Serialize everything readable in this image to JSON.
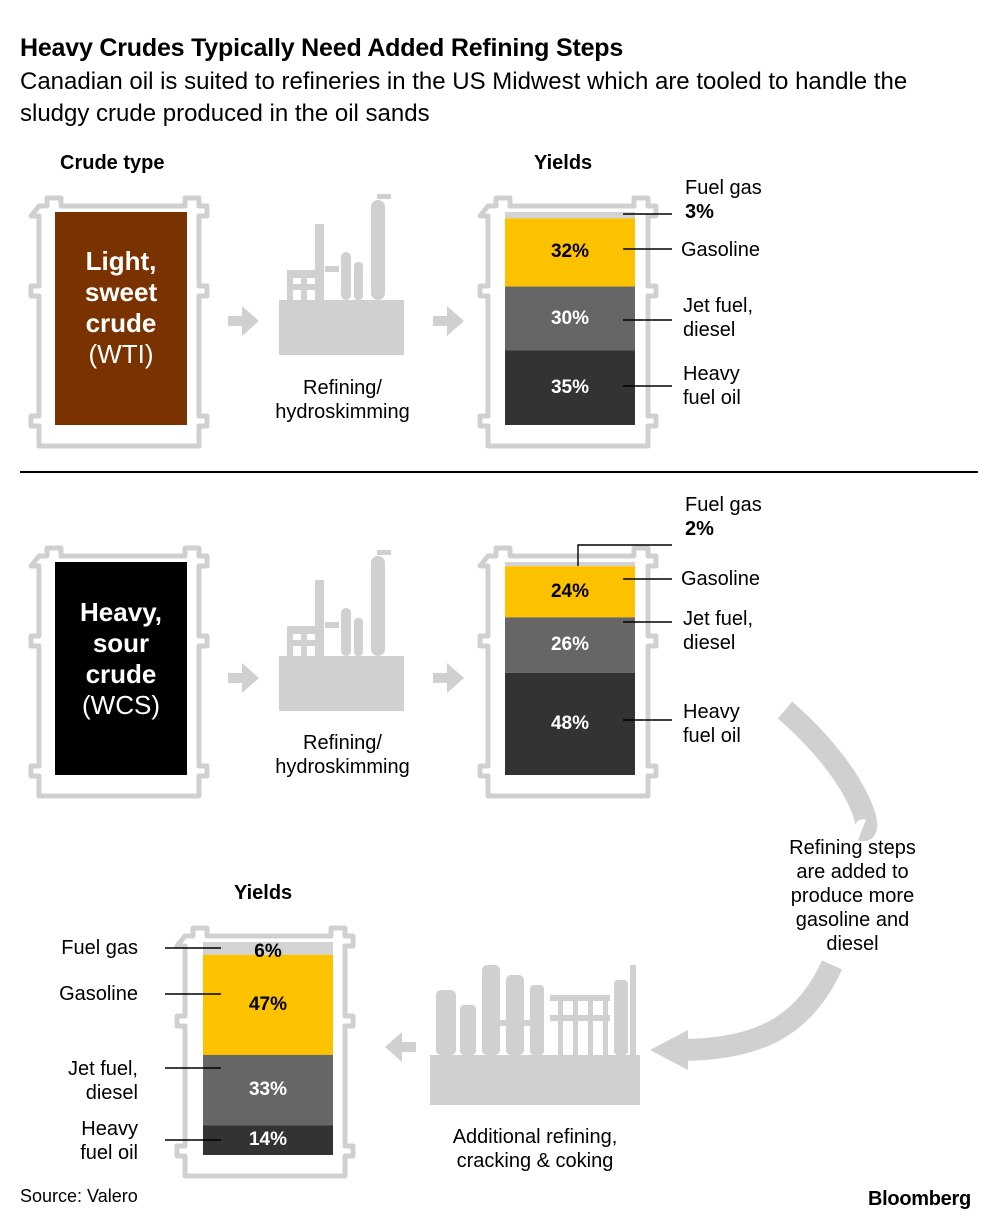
{
  "title": "Heavy Crudes Typically Need Added Refining Steps",
  "subtitle": "Canadian oil is suited to refineries in the US Midwest which are tooled to handle the sludgy crude produced in the oil sands",
  "headers": {
    "crude_type": "Crude type",
    "yields": "Yields"
  },
  "light": {
    "name_bold": [
      "Light,",
      "sweet",
      "crude"
    ],
    "name_regular": "(WTI)",
    "color": "#7a3300",
    "process_label": [
      "Refining/",
      "hydroskimming"
    ]
  },
  "heavy": {
    "name_bold": [
      "Heavy,",
      "sour",
      "crude"
    ],
    "name_regular": "(WCS)",
    "color": "#000000",
    "process_label": [
      "Refining/",
      "hydroskimming"
    ]
  },
  "additional_process_label": [
    "Additional refining,",
    "cracking & coking"
  ],
  "arc_note": [
    "Refining steps",
    "are added to",
    "produce more",
    "gasoline and",
    "diesel"
  ],
  "chart_data": [
    {
      "type": "bar",
      "stacked": true,
      "title": "Yields",
      "crude": "Light, sweet crude (WTI)",
      "categories": [
        "Fuel gas",
        "Gasoline",
        "Jet fuel, diesel",
        "Heavy fuel oil"
      ],
      "values": [
        3,
        32,
        30,
        35
      ],
      "labels": [
        "3%",
        "32%",
        "30%",
        "35%"
      ]
    },
    {
      "type": "bar",
      "stacked": true,
      "title": "Yields",
      "crude": "Heavy, sour crude (WCS)",
      "categories": [
        "Fuel gas",
        "Gasoline",
        "Jet fuel, diesel",
        "Heavy fuel oil"
      ],
      "values": [
        2,
        24,
        26,
        48
      ],
      "labels": [
        "2%",
        "24%",
        "26%",
        "48%"
      ]
    },
    {
      "type": "bar",
      "stacked": true,
      "title": "Yields",
      "crude": "Heavy, sour crude (WCS) after additional refining, cracking & coking",
      "categories": [
        "Fuel gas",
        "Gasoline",
        "Jet fuel, diesel",
        "Heavy fuel oil"
      ],
      "values": [
        6,
        47,
        33,
        14
      ],
      "labels": [
        "6%",
        "47%",
        "33%",
        "14%"
      ]
    }
  ],
  "category_labels": {
    "fuel_gas": [
      "Fuel gas"
    ],
    "gasoline": [
      "Gasoline"
    ],
    "jet": [
      "Jet fuel,",
      "diesel"
    ],
    "heavy": [
      "Heavy",
      "fuel oil"
    ]
  },
  "colors": {
    "fuel_gas": "#d3d3d3",
    "gasoline": "#fcc200",
    "jet": "#666666",
    "heavy": "#333333",
    "icon": "#d0d0d0",
    "barrel_outline": "#d0d0d0"
  },
  "source": "Source: Valero",
  "brand": "Bloomberg"
}
